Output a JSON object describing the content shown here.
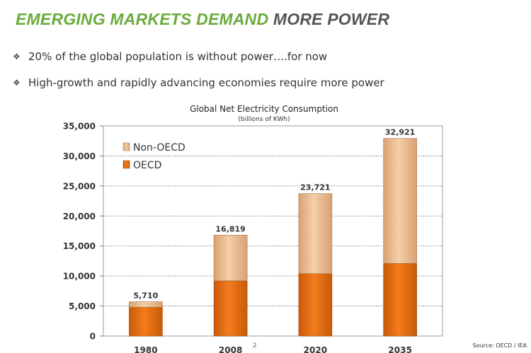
{
  "slide": {
    "title_part_1": "EMERGING MARKETS DEMAND",
    "title_part_2": "MORE POWER",
    "bullets": [
      "20% of the global population is without power….for now",
      "High-growth and rapidly advancing economies require more power"
    ],
    "bullet_icon": "diamond-bullet-icon",
    "source": "Source: OECD / IEA",
    "page_number": "2"
  },
  "chart_data": {
    "type": "bar",
    "stacked": true,
    "title": "Global Net Electricity Consumption",
    "subtitle": "(billions of KWh)",
    "categories": [
      "1980",
      "2008",
      "2020",
      "2035"
    ],
    "series": [
      {
        "name": "OECD",
        "values": [
          4800,
          9200,
          10400,
          12100
        ],
        "color": "#e46c0a"
      },
      {
        "name": "Non-OECD",
        "values": [
          910,
          7619,
          13321,
          20821
        ],
        "color": "#e6b58a"
      }
    ],
    "totals": [
      "5,710",
      "16,819",
      "23,721",
      "32,921"
    ],
    "y_ticks": [
      "0",
      "5,000",
      "10,000",
      "15,000",
      "20,000",
      "25,000",
      "30,000",
      "35,000"
    ],
    "ylim": [
      0,
      35000
    ],
    "grid": true,
    "legend_position": "top-left"
  }
}
